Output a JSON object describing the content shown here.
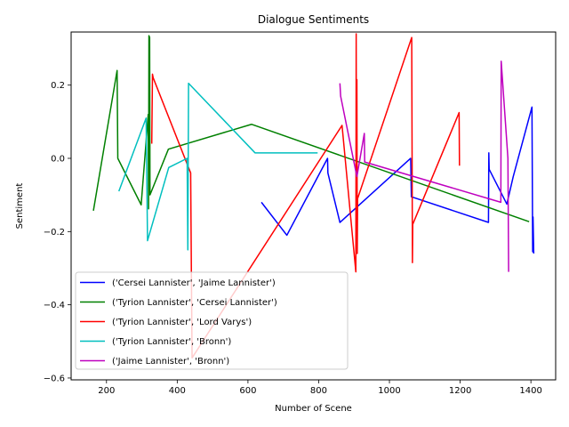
{
  "chart_data": {
    "type": "line",
    "title": "Dialogue Sentiments",
    "xlabel": "Number of Scene",
    "ylabel": "Sentiment",
    "xlim": [
      100,
      1470
    ],
    "ylim": [
      -0.605,
      0.345
    ],
    "xticks": [
      200,
      400,
      600,
      800,
      1000,
      1200,
      1400
    ],
    "yticks": [
      -0.6,
      -0.4,
      -0.2,
      0.0,
      0.2
    ],
    "ytick_labels": [
      "−0.6",
      "−0.4",
      "−0.2",
      "0.0",
      "0.2"
    ],
    "grid": false,
    "legend_position": "lower-left",
    "series": [
      {
        "name": "('Cersei Lannister', 'Jaime Lannister')",
        "color": "#0000ff",
        "x": [
          638,
          710,
          825,
          826,
          860,
          1060,
          1062,
          1280,
          1281,
          1282,
          1332,
          1350,
          1403,
          1405,
          1406,
          1408
        ],
        "y": [
          -0.12,
          -0.21,
          0.0,
          -0.04,
          -0.175,
          0.0,
          -0.105,
          -0.175,
          0.015,
          -0.03,
          -0.125,
          -0.05,
          0.14,
          -0.255,
          -0.16,
          -0.26
        ]
      },
      {
        "name": "('Tyrion Lannister', 'Cersei Lannister')",
        "color": "#008000",
        "x": [
          163,
          230,
          232,
          298,
          318,
          319,
          320,
          322,
          323,
          375,
          610,
          1395
        ],
        "y": [
          -0.143,
          0.24,
          0.0,
          -0.127,
          0.12,
          -0.138,
          0.335,
          0.33,
          -0.1,
          0.025,
          0.093,
          -0.173
        ]
      },
      {
        "name": "('Tyrion Lannister', 'Lord Varys')",
        "color": "#ff0000",
        "x": [
          328,
          330,
          332,
          438,
          440,
          442,
          866,
          905,
          906,
          907,
          908,
          909,
          910,
          1063,
          1065,
          1066,
          1197,
          1198
        ],
        "y": [
          0.04,
          0.23,
          0.22,
          -0.04,
          -0.31,
          -0.545,
          0.09,
          -0.31,
          0.34,
          -0.25,
          0.215,
          -0.26,
          -0.11,
          0.33,
          -0.285,
          -0.18,
          0.125,
          -0.02
        ]
      },
      {
        "name": "('Tyrion Lannister', 'Bronn')",
        "color": "#00bfbf",
        "x": [
          235,
          312,
          316,
          376,
          428,
          430,
          432,
          620,
          797
        ],
        "y": [
          -0.09,
          0.11,
          -0.225,
          -0.025,
          0.0,
          -0.25,
          0.205,
          0.015,
          0.015
        ]
      },
      {
        "name": "('Jaime Lannister', 'Bronn')",
        "color": "#bf00bf",
        "x": [
          860,
          862,
          908,
          929,
          930,
          1315,
          1316,
          1335,
          1337
        ],
        "y": [
          0.205,
          0.17,
          -0.05,
          0.068,
          -0.01,
          -0.12,
          0.265,
          0.0,
          -0.31
        ]
      }
    ]
  }
}
